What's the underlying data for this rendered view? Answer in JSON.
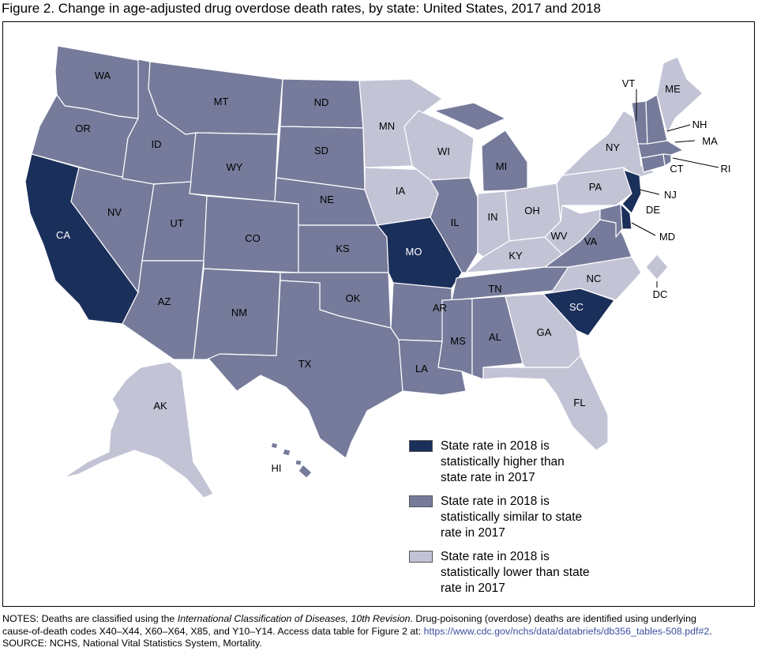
{
  "title": "Figure 2. Change in age-adjusted drug overdose death rates, by state: United States, 2017 and 2018",
  "colors": {
    "higher": "#1b2f5b",
    "similar": "#767b9b",
    "lower": "#c3c3d6"
  },
  "legend": [
    {
      "category": "higher",
      "text": "State rate in 2018 is statistically higher than state rate in 2017"
    },
    {
      "category": "similar",
      "text": "State rate in 2018 is statistically similar to state rate in 2017"
    },
    {
      "category": "lower",
      "text": "State rate in 2018 is statistically lower than state rate in 2017"
    }
  ],
  "states": {
    "WA": "similar",
    "OR": "similar",
    "CA": "higher",
    "NV": "similar",
    "ID": "similar",
    "MT": "similar",
    "WY": "similar",
    "UT": "similar",
    "AZ": "similar",
    "CO": "similar",
    "NM": "similar",
    "ND": "similar",
    "SD": "similar",
    "NE": "similar",
    "KS": "similar",
    "OK": "similar",
    "TX": "similar",
    "MN": "lower",
    "IA": "lower",
    "MO": "higher",
    "AR": "similar",
    "LA": "similar",
    "WI": "lower",
    "IL": "similar",
    "MI": "similar",
    "IN": "lower",
    "OH": "lower",
    "KY": "lower",
    "TN": "similar",
    "MS": "similar",
    "AL": "similar",
    "GA": "lower",
    "FL": "lower",
    "SC": "higher",
    "NC": "lower",
    "VA": "similar",
    "WV": "lower",
    "PA": "lower",
    "NY": "lower",
    "NJ": "higher",
    "DE": "higher",
    "MD": "similar",
    "DC": "lower",
    "CT": "similar",
    "RI": "similar",
    "MA": "similar",
    "VT": "similar",
    "NH": "similar",
    "ME": "lower",
    "AK": "lower",
    "HI": "similar"
  },
  "notes": {
    "line1_prefix": "NOTES: Deaths are classified using the ",
    "line1_italic": "International Classification of Diseases, 10th Revision",
    "line1_suffix": ". Drug-poisoning (overdose) deaths are identified using underlying",
    "line2_prefix": "cause-of-death codes X40–X44, X60–X64, X85, and Y10–Y14. Access data table for Figure 2 at: ",
    "line2_link": "https://www.cdc.gov/nchs/data/databriefs/db356_tables-508.pdf#2",
    "line2_suffix": ".",
    "source": "SOURCE: NCHS, National Vital Statistics System, Mortality."
  }
}
